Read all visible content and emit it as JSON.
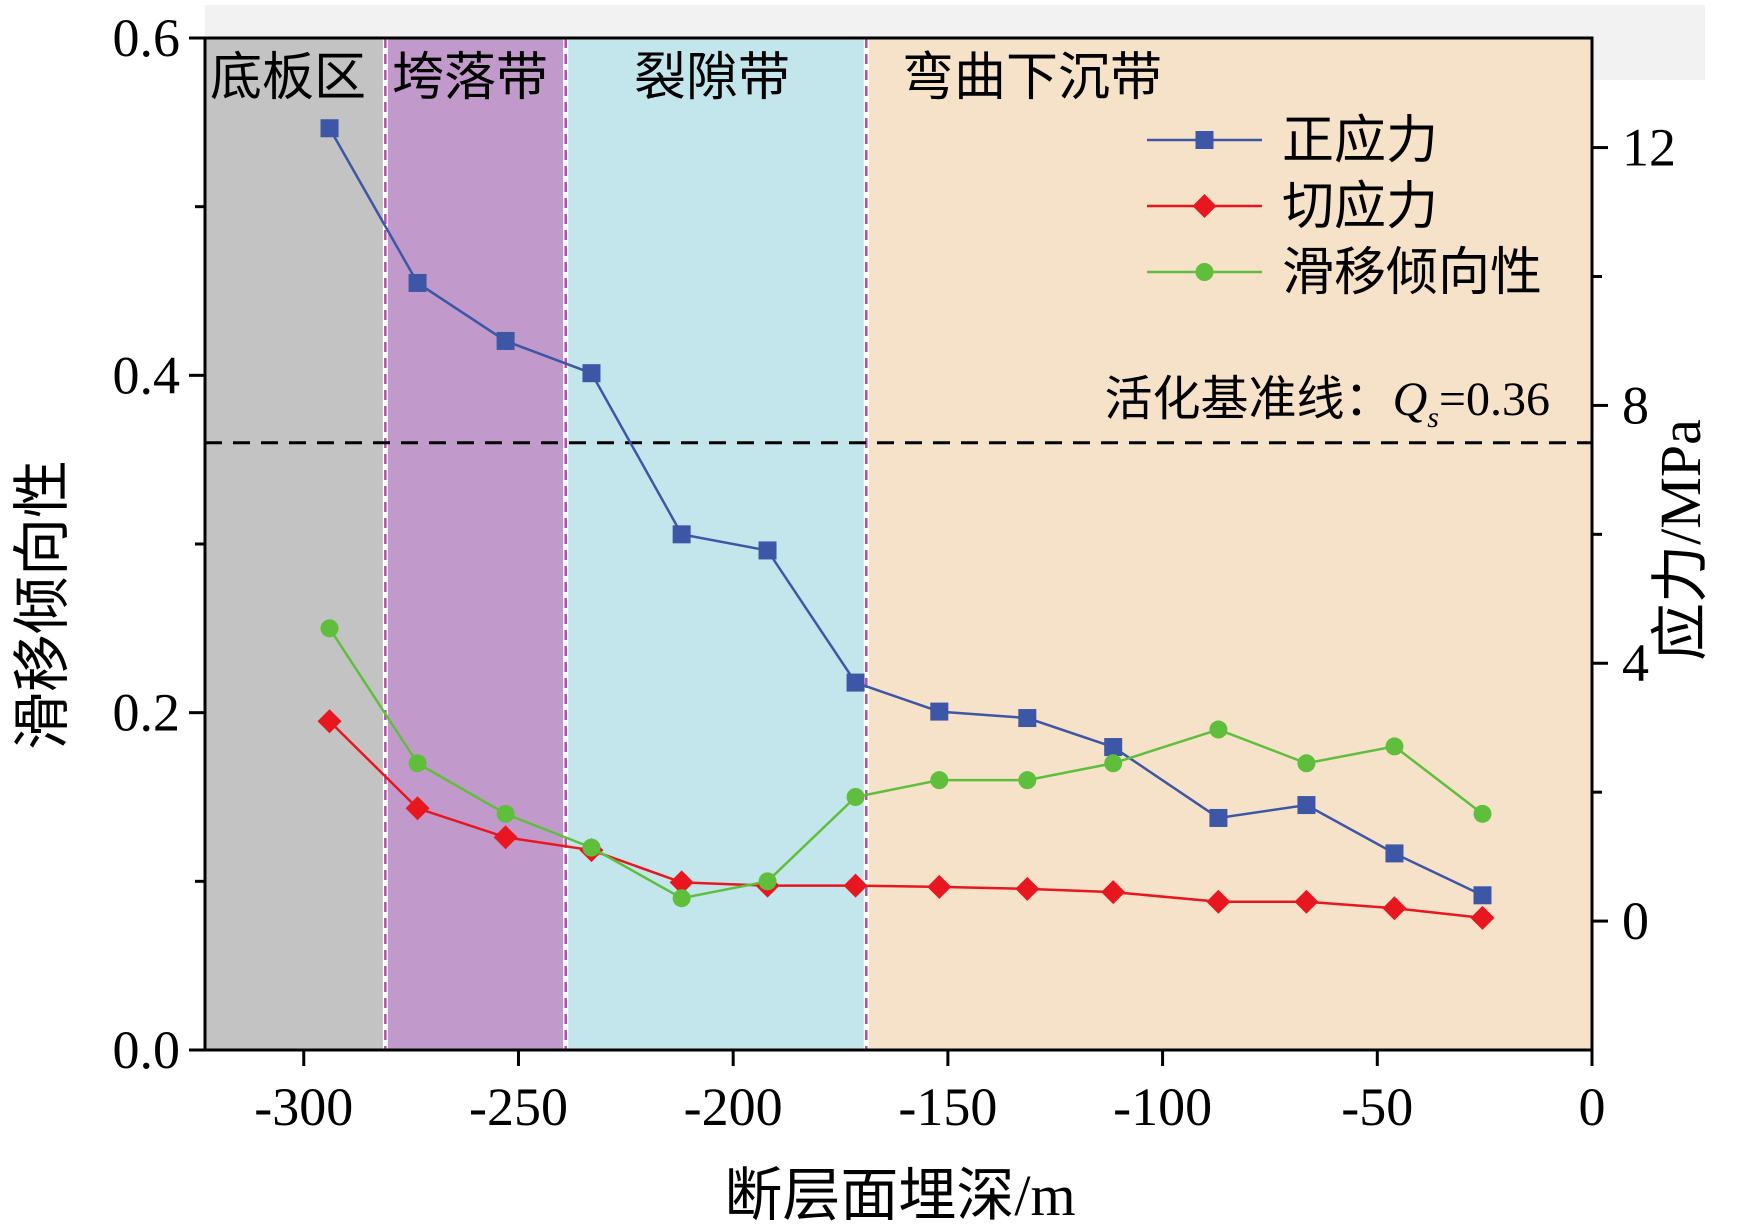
{
  "chart_data": {
    "type": "line",
    "xlabel": "断层面埋深/m",
    "ylabel_left": "滑移倾向性",
    "ylabel_right": "应力/MPa",
    "xlim": [
      -323,
      0
    ],
    "ylim_left": [
      0,
      0.6
    ],
    "ylim_right": [
      -2,
      13.7
    ],
    "x_ticks": [
      -300,
      -250,
      -200,
      -150,
      -100,
      -50,
      0
    ],
    "x_tick_labels": [
      "-300",
      "-250",
      "-200",
      "-150",
      "-100",
      "-50",
      "0"
    ],
    "y_left_ticks": [
      0.0,
      0.2,
      0.4,
      0.6
    ],
    "y_left_tick_labels": [
      "0.0",
      "0.2",
      "0.4",
      "0.6"
    ],
    "y_left_minor_ticks": [
      0.1,
      0.3,
      0.5
    ],
    "y_right_ticks": [
      0,
      4,
      8,
      12
    ],
    "y_right_tick_labels": [
      "0",
      "4",
      "8",
      "12"
    ],
    "y_right_minor_ticks": [
      2,
      6,
      10
    ],
    "zones": [
      {
        "label": "底板区",
        "x0": -323,
        "x1": -281,
        "color": "#c3c3c3"
      },
      {
        "label": "垮落带",
        "x0": -281,
        "x1": -239,
        "color": "#c19acb"
      },
      {
        "label": "裂隙带",
        "x0": -239,
        "x1": -169,
        "color": "#c2e6ec"
      },
      {
        "label": "弯曲下沉带",
        "x0": -169,
        "x1": 0,
        "color": "#f6e2c9"
      }
    ],
    "boundaries": [
      -281,
      -239,
      -169
    ],
    "reference_line": {
      "label": "活化基准线：",
      "symbol": "Q",
      "subscript": "s",
      "suffix": "=0.36",
      "value": 0.36
    },
    "legend_position": "top-right",
    "series": [
      {
        "name": "正应力",
        "axis": "right",
        "color": "#3d56a6",
        "marker": "square",
        "x": [
          -294,
          -273.5,
          -253,
          -233,
          -212,
          -192,
          -171.5,
          -152,
          -131.5,
          -111.5,
          -87,
          -66.5,
          -46,
          -25.5
        ],
        "values": [
          12.3,
          9.9,
          9.0,
          8.5,
          6.0,
          5.75,
          3.7,
          3.25,
          3.15,
          2.7,
          1.6,
          1.8,
          1.05,
          0.4
        ]
      },
      {
        "name": "切应力",
        "axis": "right",
        "color": "#e8161f",
        "marker": "diamond",
        "x": [
          -294,
          -273.5,
          -253,
          -233,
          -212,
          -192,
          -171.5,
          -152,
          -131.5,
          -111.5,
          -87,
          -66.5,
          -46,
          -25.5
        ],
        "values": [
          3.1,
          1.75,
          1.3,
          1.1,
          0.6,
          0.55,
          0.55,
          0.53,
          0.5,
          0.45,
          0.3,
          0.3,
          0.2,
          0.05
        ]
      },
      {
        "name": "滑移倾向性",
        "axis": "left",
        "color": "#5fbf3c",
        "marker": "circle",
        "x": [
          -294,
          -273.5,
          -253,
          -233,
          -212,
          -192,
          -171.5,
          -152,
          -131.5,
          -111.5,
          -87,
          -66.5,
          -46,
          -25.5
        ],
        "values": [
          0.25,
          0.17,
          0.14,
          0.12,
          0.09,
          0.1,
          0.15,
          0.16,
          0.16,
          0.17,
          0.19,
          0.17,
          0.18,
          0.14
        ]
      }
    ]
  }
}
